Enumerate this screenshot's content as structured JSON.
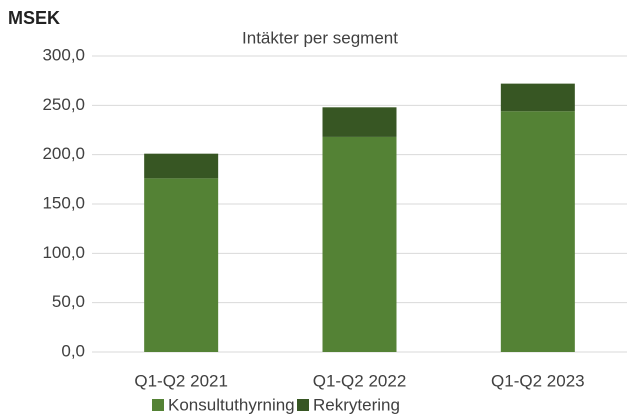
{
  "chart_data": {
    "type": "stacked_bar",
    "title": "Intäkter per segment",
    "y_label": "MSEK",
    "categories": [
      "Q1-Q2 2021",
      "Q1-Q2 2022",
      "Q1-Q2 2023"
    ],
    "series": [
      {
        "name": "Konsultuthyrning",
        "color": "#548235",
        "values": [
          176,
          218,
          244
        ]
      },
      {
        "name": "Rekrytering",
        "color": "#375623",
        "values": [
          25,
          30,
          28
        ]
      }
    ],
    "ylim": [
      0,
      300
    ],
    "yticks": [
      {
        "value": 0,
        "label": "0,0"
      },
      {
        "value": 50,
        "label": "50,0"
      },
      {
        "value": 100,
        "label": "100,0"
      },
      {
        "value": 150,
        "label": "150,0"
      },
      {
        "value": 200,
        "label": "200,0"
      },
      {
        "value": 250,
        "label": "250,0"
      },
      {
        "value": 300,
        "label": "300,0"
      }
    ],
    "grid": true
  }
}
